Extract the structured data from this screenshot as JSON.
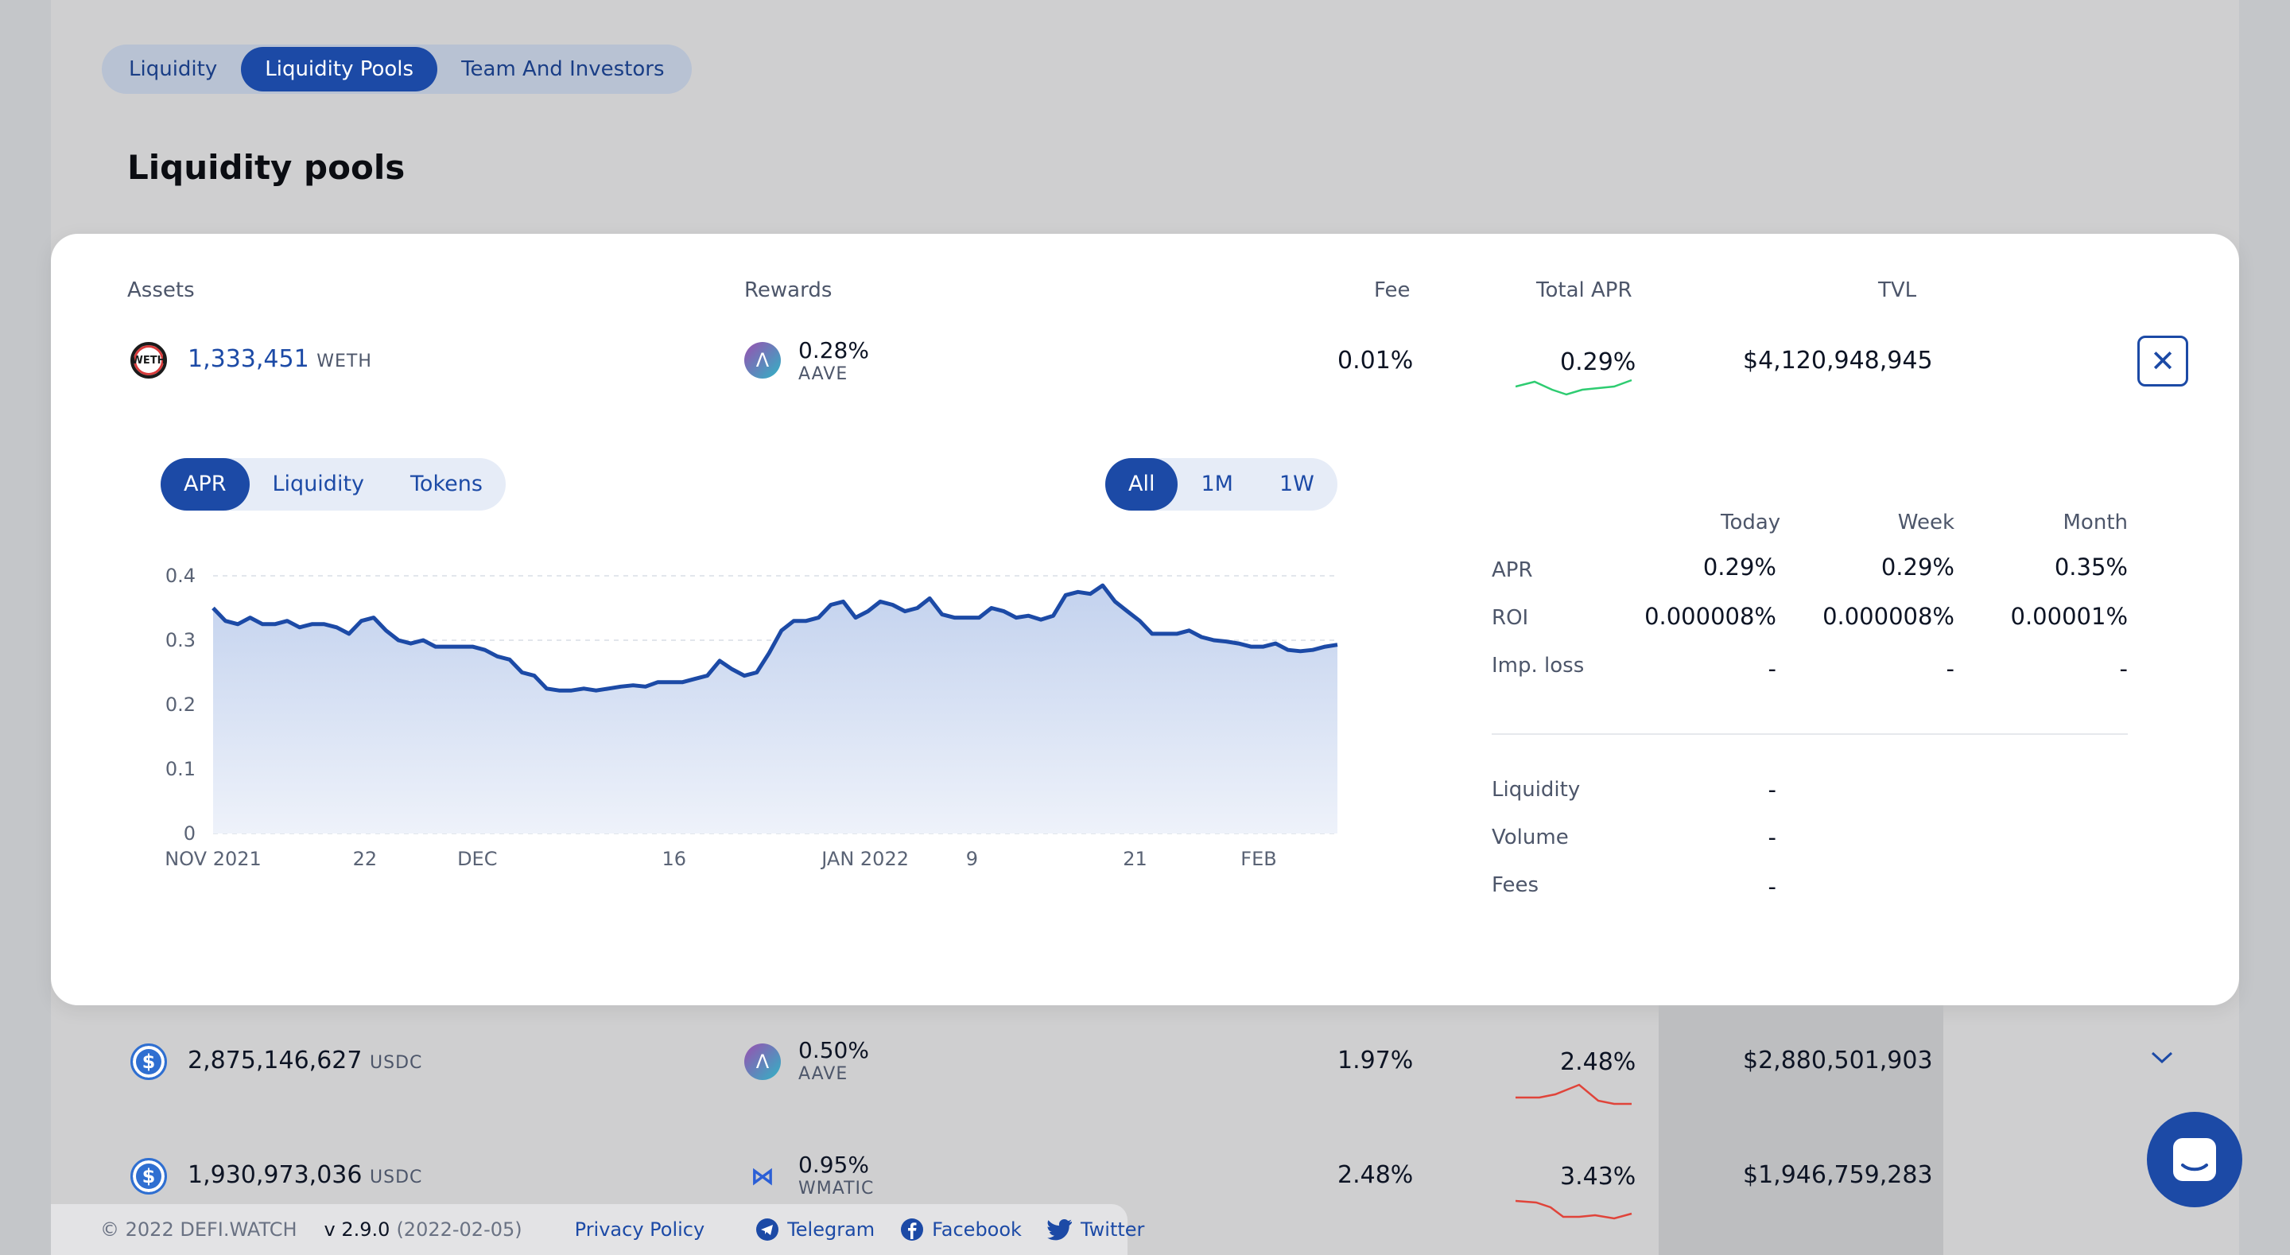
{
  "tabs": [
    "Liquidity",
    "Liquidity Pools",
    "Team And Investors"
  ],
  "page_title": "Liquidity pools",
  "headers": {
    "assets": "Assets",
    "rewards": "Rewards",
    "fee": "Fee",
    "total_apr": "Total APR",
    "tvl": "TVL"
  },
  "selected_pool": {
    "asset_amount": "1,333,451",
    "asset_symbol": "WETH",
    "asset_icon": "weth-icon",
    "reward_pct": "0.28%",
    "reward_symbol": "AAVE",
    "reward_icon": "aave-icon",
    "fee": "0.01%",
    "total_apr": "0.29%",
    "tvl": "$4,120,948,945",
    "sparkline_color": "#2ecc71"
  },
  "chart_tabs": [
    "APR",
    "Liquidity",
    "Tokens"
  ],
  "range_tabs": [
    "All",
    "1M",
    "1W"
  ],
  "chart_data": {
    "type": "area",
    "y_ticks": [
      "0.4",
      "0.3",
      "0.2",
      "0.1",
      "0"
    ],
    "ylim": [
      0,
      0.4
    ],
    "x_tick_labels": [
      "NOV 2021",
      "22",
      "DEC",
      "16",
      "JAN 2022",
      "9",
      "21",
      "FEB"
    ],
    "series": [
      {
        "values": [
          0.35,
          0.33,
          0.325,
          0.335,
          0.325,
          0.325,
          0.33,
          0.32,
          0.325,
          0.325,
          0.32,
          0.31,
          0.33,
          0.335,
          0.315,
          0.3,
          0.295,
          0.3,
          0.29,
          0.29,
          0.29,
          0.29,
          0.285,
          0.275,
          0.27,
          0.25,
          0.245,
          0.225,
          0.222,
          0.222,
          0.225,
          0.222,
          0.225,
          0.228,
          0.23,
          0.228,
          0.235,
          0.235,
          0.235,
          0.24,
          0.245,
          0.268,
          0.255,
          0.245,
          0.25,
          0.28,
          0.315,
          0.33,
          0.33,
          0.335,
          0.355,
          0.36,
          0.335,
          0.345,
          0.36,
          0.355,
          0.345,
          0.35,
          0.365,
          0.34,
          0.335,
          0.335,
          0.335,
          0.35,
          0.345,
          0.335,
          0.338,
          0.332,
          0.338,
          0.37,
          0.375,
          0.372,
          0.385,
          0.36,
          0.345,
          0.33,
          0.31,
          0.31,
          0.31,
          0.315,
          0.305,
          0.3,
          0.298,
          0.295,
          0.29,
          0.29,
          0.295,
          0.285,
          0.283,
          0.285,
          0.29,
          0.293
        ],
        "color": "#1c4aa6"
      }
    ],
    "grid": true
  },
  "stats": {
    "columns": [
      "Today",
      "Week",
      "Month"
    ],
    "rows": [
      {
        "label": "APR",
        "values": [
          "0.29%",
          "0.29%",
          "0.35%"
        ]
      },
      {
        "label": "ROI",
        "values": [
          "0.000008%",
          "0.000008%",
          "0.00001%"
        ]
      },
      {
        "label": "Imp. loss",
        "values": [
          "-",
          "-",
          "-"
        ]
      }
    ],
    "details": [
      {
        "label": "Liquidity",
        "value": "-"
      },
      {
        "label": "Volume",
        "value": "-"
      },
      {
        "label": "Fees",
        "value": "-"
      }
    ]
  },
  "other_pools": [
    {
      "asset_amount": "2,875,146,627",
      "asset_symbol": "USDC",
      "asset_icon": "usdc-icon",
      "reward_pct": "0.50%",
      "reward_symbol": "AAVE",
      "reward_icon": "aave-icon",
      "fee": "1.97%",
      "total_apr": "2.48%",
      "tvl": "$2,880,501,903",
      "sparkline_color": "#e0443a"
    },
    {
      "asset_amount": "1,930,973,036",
      "asset_symbol": "USDC",
      "asset_icon": "usdc-icon",
      "reward_pct": "0.95%",
      "reward_symbol": "WMATIC",
      "reward_icon": "matic-icon",
      "fee": "2.48%",
      "total_apr": "3.43%",
      "tvl": "$1,946,759,283",
      "sparkline_color": "#e0443a"
    }
  ],
  "footer": {
    "copyright": "© 2022 DEFI.WATCH",
    "version": "v 2.9.0",
    "version_date": "(2022-02-05)",
    "privacy": "Privacy Policy",
    "telegram": "Telegram",
    "facebook": "Facebook",
    "twitter": "Twitter"
  },
  "colors": {
    "accent": "#1c4aa6",
    "panel": "#ffffff",
    "backdrop": "#c4c6c9"
  }
}
